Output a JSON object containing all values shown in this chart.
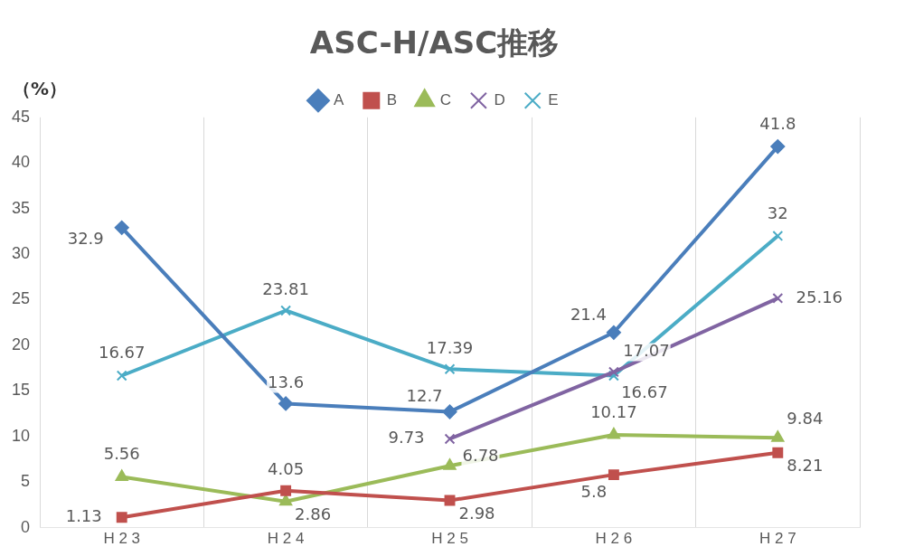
{
  "chart_data": {
    "type": "line",
    "title": "ASC-H/ASC推移",
    "ylabel": "（%）",
    "categories": [
      "H 2 3",
      "H 2 4",
      "H 2 5",
      "H 2 6",
      "H 2 7"
    ],
    "series": [
      {
        "name": "A",
        "color": "#4a7ebb",
        "marker": "diamond",
        "values": [
          32.9,
          13.6,
          12.7,
          21.4,
          41.8
        ]
      },
      {
        "name": "B",
        "color": "#c0504d",
        "marker": "square",
        "values": [
          1.13,
          4.05,
          2.98,
          5.8,
          8.21
        ]
      },
      {
        "name": "C",
        "color": "#9bbb59",
        "marker": "triangle",
        "values": [
          5.56,
          2.86,
          6.78,
          10.17,
          9.84
        ]
      },
      {
        "name": "D",
        "color": "#8064a2",
        "marker": "cross",
        "values": [
          null,
          null,
          9.73,
          17.07,
          25.16
        ]
      },
      {
        "name": "E",
        "color": "#4bacc6",
        "marker": "cross",
        "values": [
          16.67,
          23.81,
          17.39,
          16.67,
          32
        ]
      }
    ],
    "ylim": [
      0,
      45
    ],
    "yticks": [
      0,
      5,
      10,
      15,
      20,
      25,
      30,
      35,
      40,
      45
    ],
    "grid": "x",
    "legend": "top",
    "data_labels": true
  }
}
